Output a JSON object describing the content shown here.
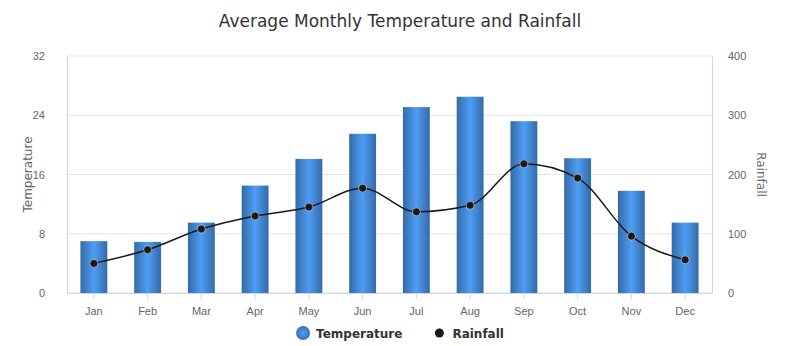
{
  "chart_data": {
    "type": "bar",
    "title": "Average Monthly Temperature and Rainfall",
    "categories": [
      "Jan",
      "Feb",
      "Mar",
      "Apr",
      "May",
      "Jun",
      "Jul",
      "Aug",
      "Sep",
      "Oct",
      "Nov",
      "Dec"
    ],
    "series": [
      {
        "name": "Temperature",
        "type": "bar",
        "color": "#3f7fc6",
        "values": [
          7.0,
          6.9,
          9.5,
          14.5,
          18.1,
          21.5,
          25.1,
          26.5,
          23.2,
          18.2,
          13.8,
          9.5
        ]
      },
      {
        "name": "Rainfall",
        "type": "line",
        "axis": "y2",
        "color": "#1a1a1a",
        "marker": "circle",
        "values": [
          50,
          73,
          108,
          130,
          145,
          177,
          137,
          148,
          218,
          194,
          96,
          56
        ]
      }
    ],
    "ylabel": "Temperature",
    "y2label": "Rainfall",
    "ylim": [
      0,
      32
    ],
    "yticks": [
      0,
      8,
      16,
      24,
      32
    ],
    "y2lim": [
      0,
      400
    ],
    "y2ticks": [
      0,
      100,
      200,
      300,
      400
    ],
    "grid": true,
    "legend": "bottom"
  }
}
